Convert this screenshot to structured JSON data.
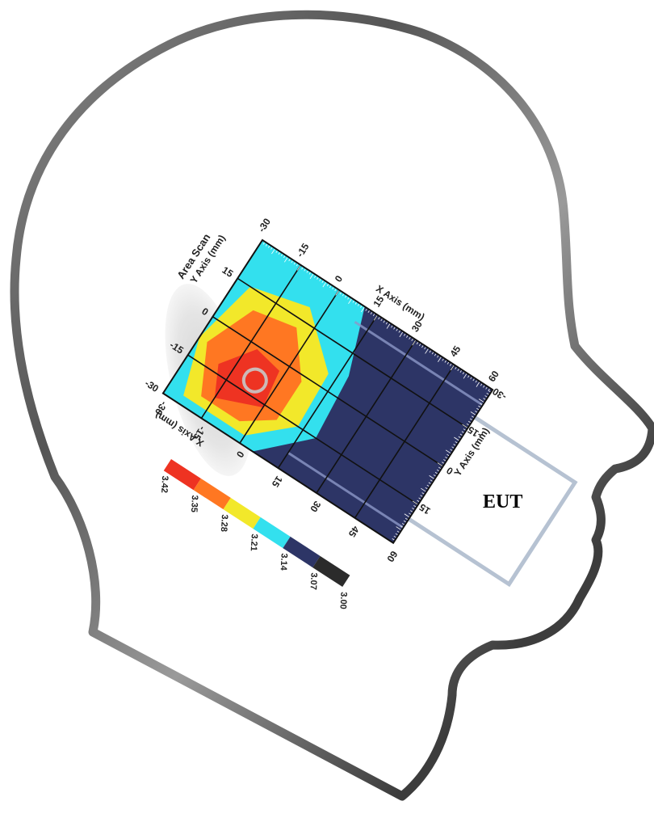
{
  "figure": {
    "device_label": "EUT",
    "scan_title": "Area Scan"
  },
  "chart_data": {
    "type": "heatmap",
    "title": "Area Scan",
    "xlabel": "X Axis (mm)",
    "ylabel": "Y Axis (mm)",
    "x_ticks": [
      "-30",
      "-15",
      "0",
      "15",
      "30",
      "45",
      "60"
    ],
    "y_ticks": [
      "-30",
      "-15",
      "0",
      "15"
    ],
    "y_ticks_device": [
      "15",
      "0",
      "-15",
      "-30"
    ],
    "xlim": [
      -30,
      60
    ],
    "ylim": [
      -30,
      30
    ],
    "grid": true,
    "peak_marker": {
      "x": -7,
      "y": -10
    },
    "colorbar": {
      "values": [
        "3.42",
        "3.35",
        "3.28",
        "3.21",
        "3.14",
        "3.07",
        "3.00"
      ],
      "colors": [
        "#ee3322",
        "#ff7722",
        "#f2e82a",
        "#33e0ee",
        "#2d3566",
        "#2b2b2b"
      ]
    },
    "contours": [
      {
        "level": 3.14,
        "color": "#33e0ee",
        "polygon": [
          [
            -30,
            -30
          ],
          [
            -30,
            30
          ],
          [
            10,
            30
          ],
          [
            18,
            8
          ],
          [
            20,
            -15
          ],
          [
            5,
            -30
          ]
        ]
      },
      {
        "level": 3.21,
        "color": "#f2e82a",
        "polygon": [
          [
            -24,
            -27
          ],
          [
            -30,
            -8
          ],
          [
            -25,
            15
          ],
          [
            -5,
            20
          ],
          [
            12,
            5
          ],
          [
            13,
            -15
          ],
          [
            0,
            -27
          ]
        ]
      },
      {
        "level": 3.28,
        "color": "#ff7722",
        "polygon": [
          [
            -19,
            -24
          ],
          [
            -27,
            -8
          ],
          [
            -20,
            9
          ],
          [
            -5,
            12
          ],
          [
            6,
            -2
          ],
          [
            6,
            -17
          ],
          [
            -4,
            -24
          ]
        ]
      },
      {
        "level": 3.35,
        "color": "#ee3322",
        "polygon": [
          [
            -15,
            -22
          ],
          [
            -20,
            -12
          ],
          [
            -12,
            -1
          ],
          [
            -2,
            -3
          ],
          [
            0,
            -16
          ]
        ]
      }
    ]
  }
}
